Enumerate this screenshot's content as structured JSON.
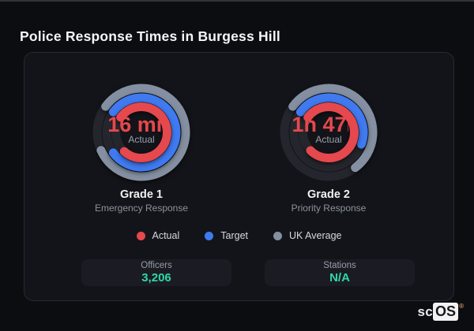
{
  "title": "Police Response Times in Burgess Hill",
  "colors": {
    "actual": "#e5484d",
    "target": "#3f7af0",
    "uk_average": "#8490a1",
    "track": "#25262d",
    "stat_value": "#2ed9a4",
    "card_bg": "#131419",
    "page_bg": "#0c0d11"
  },
  "gauges": [
    {
      "value": "16 min",
      "sublabel": "Actual",
      "name": "Grade 1",
      "description": "Emergency Response",
      "rings": [
        {
          "series": "uk_average",
          "sweep_deg": 300
        },
        {
          "series": "target",
          "sweep_deg": 288
        },
        {
          "series": "actual",
          "sweep_deg": 276
        }
      ]
    },
    {
      "value": "1h 47m",
      "sublabel": "Actual",
      "name": "Grade 2",
      "description": "Priority Response",
      "rings": [
        {
          "series": "uk_average",
          "sweep_deg": 197
        },
        {
          "series": "target",
          "sweep_deg": 164
        },
        {
          "series": "actual",
          "sweep_deg": 279
        }
      ]
    }
  ],
  "legend": [
    {
      "label": "Actual",
      "series": "actual"
    },
    {
      "label": "Target",
      "series": "target"
    },
    {
      "label": "UK Average",
      "series": "uk_average"
    }
  ],
  "stats": [
    {
      "label": "Officers",
      "value": "3,206"
    },
    {
      "label": "Stations",
      "value": "N/A"
    }
  ],
  "watermark": {
    "prefix": "sc",
    "boxed": "OS",
    "reg": "®"
  },
  "chart_data": {
    "type": "radial-gauge",
    "categories": [
      "Grade 1",
      "Grade 2"
    ],
    "category_descriptions": [
      "Emergency Response",
      "Priority Response"
    ],
    "center_labels": [
      "16 min",
      "1h 47m"
    ],
    "start_angle_deg_from_12": -54,
    "direction": "clockwise",
    "legend_position": "bottom",
    "series": [
      {
        "name": "Actual",
        "ring": "inner",
        "sweep_deg": [
          276,
          279
        ],
        "display": [
          "16 min",
          "1h 47m"
        ]
      },
      {
        "name": "Target",
        "ring": "middle",
        "sweep_deg": [
          288,
          164
        ]
      },
      {
        "name": "UK Average",
        "ring": "outer",
        "sweep_deg": [
          300,
          197
        ]
      }
    ]
  }
}
